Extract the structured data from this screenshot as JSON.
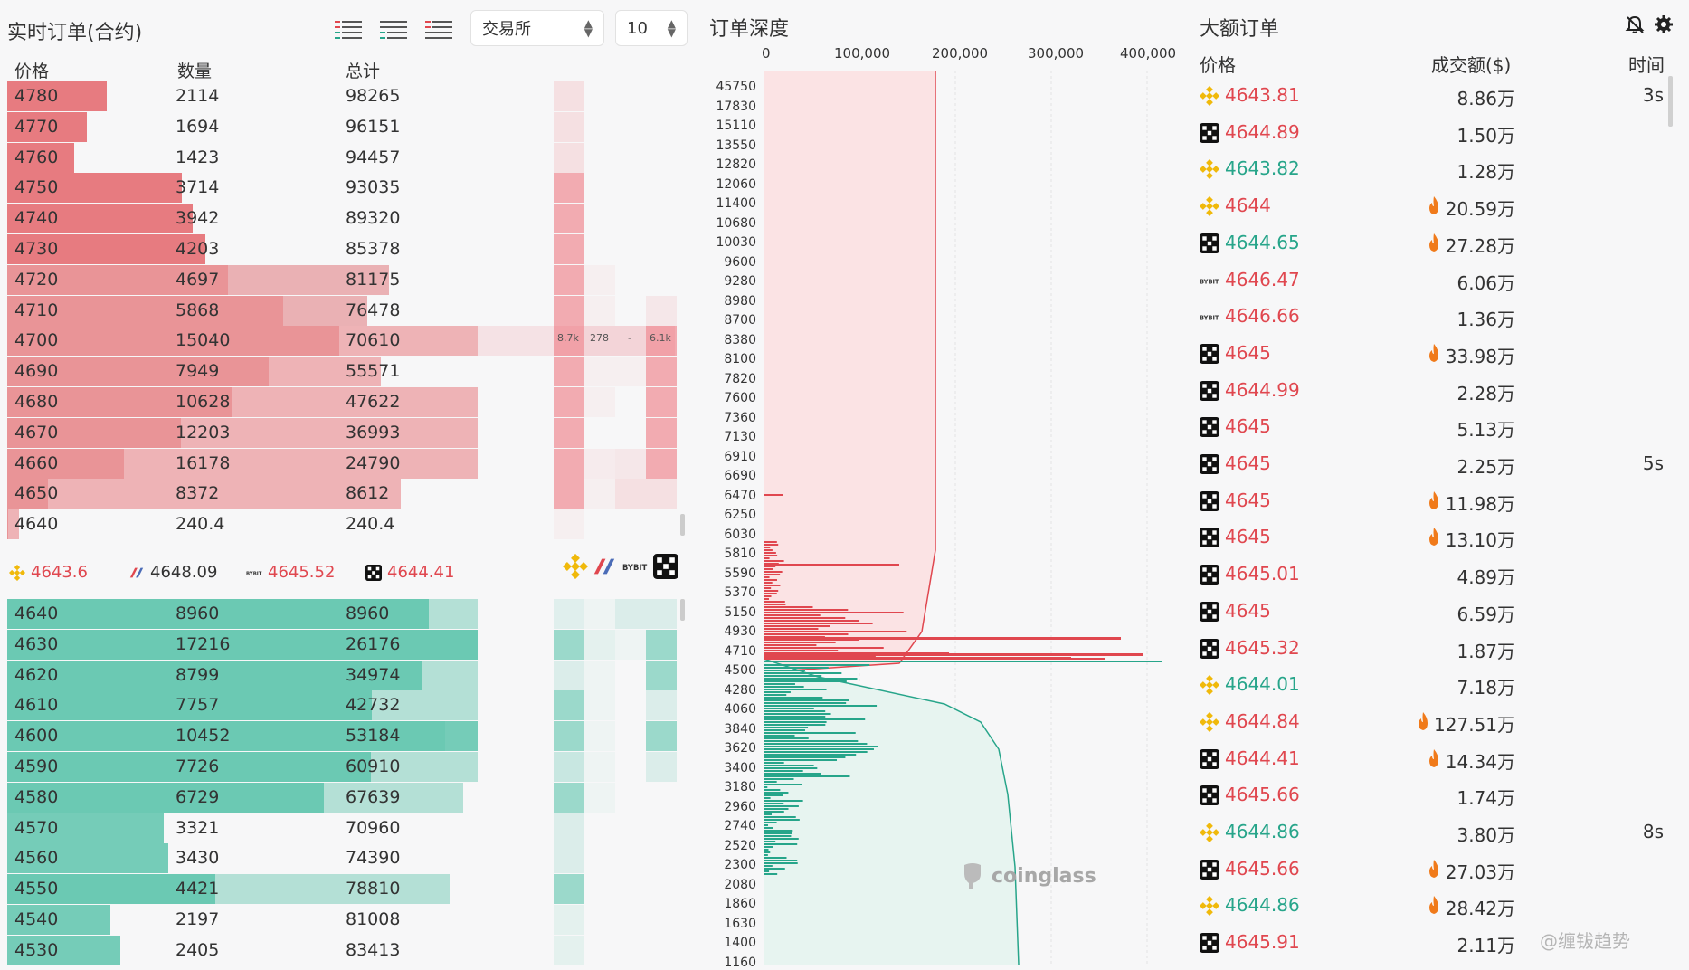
{
  "order_book": {
    "title": "实时订单(合约)",
    "exchange_select": "交易所",
    "depth_select": "10",
    "headers": {
      "price": "价格",
      "qty": "数量",
      "total": "总计"
    },
    "asks": [
      {
        "price": "4780",
        "qty": "2114",
        "total": "98265"
      },
      {
        "price": "4770",
        "qty": "1694",
        "total": "96151"
      },
      {
        "price": "4760",
        "qty": "1423",
        "total": "94457"
      },
      {
        "price": "4750",
        "qty": "3714",
        "total": "93035"
      },
      {
        "price": "4740",
        "qty": "3942",
        "total": "89320"
      },
      {
        "price": "4730",
        "qty": "4203",
        "total": "85378"
      },
      {
        "price": "4720",
        "qty": "4697",
        "total": "81175"
      },
      {
        "price": "4710",
        "qty": "5868",
        "total": "76478"
      },
      {
        "price": "4700",
        "qty": "15040",
        "total": "70610"
      },
      {
        "price": "4690",
        "qty": "7949",
        "total": "55571"
      },
      {
        "price": "4680",
        "qty": "10628",
        "total": "47622"
      },
      {
        "price": "4670",
        "qty": "12203",
        "total": "36993"
      },
      {
        "price": "4660",
        "qty": "16178",
        "total": "24790"
      },
      {
        "price": "4650",
        "qty": "8372",
        "total": "8612"
      },
      {
        "price": "4640",
        "qty": "240.4",
        "total": "240.4"
      }
    ],
    "bids": [
      {
        "price": "4640",
        "qty": "8960",
        "total": "8960"
      },
      {
        "price": "4630",
        "qty": "17216",
        "total": "26176"
      },
      {
        "price": "4620",
        "qty": "8799",
        "total": "34974"
      },
      {
        "price": "4610",
        "qty": "7757",
        "total": "42732"
      },
      {
        "price": "4600",
        "qty": "10452",
        "total": "53184"
      },
      {
        "price": "4590",
        "qty": "7726",
        "total": "60910"
      },
      {
        "price": "4580",
        "qty": "6729",
        "total": "67639"
      },
      {
        "price": "4570",
        "qty": "3321",
        "total": "70960"
      },
      {
        "price": "4560",
        "qty": "3430",
        "total": "74390"
      },
      {
        "price": "4550",
        "qty": "4421",
        "total": "78810"
      },
      {
        "price": "4540",
        "qty": "2197",
        "total": "81008"
      },
      {
        "price": "4530",
        "qty": "2405",
        "total": "83413"
      }
    ],
    "row_4700_tags": [
      "8.7k",
      "278",
      "-",
      "6.1k"
    ],
    "exchange_prices": [
      {
        "icon": "binance-icon",
        "price": "4643.6",
        "color": "#e0474f"
      },
      {
        "icon": "bitmex-icon",
        "price": "4648.09",
        "color": "#333333"
      },
      {
        "icon": "bybit-icon",
        "price": "4645.52",
        "color": "#e0474f"
      },
      {
        "icon": "okx-icon",
        "price": "4644.41",
        "color": "#e0474f"
      }
    ]
  },
  "depth": {
    "title": "订单深度",
    "x_ticks": [
      "0",
      "100,000",
      "200,000",
      "300,000",
      "400,000"
    ],
    "y_labels": [
      "45750",
      "17830",
      "15110",
      "13550",
      "12820",
      "12060",
      "11400",
      "10680",
      "10030",
      "9600",
      "9280",
      "8980",
      "8700",
      "8380",
      "8100",
      "7820",
      "7600",
      "7360",
      "7130",
      "6910",
      "6690",
      "6470",
      "6250",
      "6030",
      "5810",
      "5590",
      "5370",
      "5150",
      "4930",
      "4710",
      "4500",
      "4280",
      "4060",
      "3840",
      "3620",
      "3400",
      "3180",
      "2960",
      "2740",
      "2520",
      "2300",
      "2080",
      "1860",
      "1630",
      "1400",
      "1160"
    ],
    "watermark": "coinglass"
  },
  "big_orders": {
    "title": "大额订单",
    "headers": {
      "price": "价格",
      "amount": "成交额($)",
      "time": "时间"
    },
    "rows": [
      {
        "ex": "binance-icon",
        "price": "4643.81",
        "side": "up",
        "amount": "8.86万",
        "fire": false,
        "time": "3s"
      },
      {
        "ex": "okx-icon",
        "price": "4644.89",
        "side": "up",
        "amount": "1.50万",
        "fire": false,
        "time": ""
      },
      {
        "ex": "binance-icon",
        "price": "4643.82",
        "side": "dn",
        "amount": "1.28万",
        "fire": false,
        "time": ""
      },
      {
        "ex": "binance-icon",
        "price": "4644",
        "side": "up",
        "amount": "20.59万",
        "fire": true,
        "time": ""
      },
      {
        "ex": "okx-icon",
        "price": "4644.65",
        "side": "dn",
        "amount": "27.28万",
        "fire": true,
        "time": ""
      },
      {
        "ex": "bybit-icon",
        "price": "4646.47",
        "side": "up",
        "amount": "6.06万",
        "fire": false,
        "time": ""
      },
      {
        "ex": "bybit-icon",
        "price": "4646.66",
        "side": "up",
        "amount": "1.36万",
        "fire": false,
        "time": ""
      },
      {
        "ex": "okx-icon",
        "price": "4645",
        "side": "up",
        "amount": "33.98万",
        "fire": true,
        "time": ""
      },
      {
        "ex": "okx-icon",
        "price": "4644.99",
        "side": "up",
        "amount": "2.28万",
        "fire": false,
        "time": ""
      },
      {
        "ex": "okx-icon",
        "price": "4645",
        "side": "up",
        "amount": "5.13万",
        "fire": false,
        "time": ""
      },
      {
        "ex": "okx-icon",
        "price": "4645",
        "side": "up",
        "amount": "2.25万",
        "fire": false,
        "time": "5s"
      },
      {
        "ex": "okx-icon",
        "price": "4645",
        "side": "up",
        "amount": "11.98万",
        "fire": true,
        "time": ""
      },
      {
        "ex": "okx-icon",
        "price": "4645",
        "side": "up",
        "amount": "13.10万",
        "fire": true,
        "time": ""
      },
      {
        "ex": "okx-icon",
        "price": "4645.01",
        "side": "up",
        "amount": "4.89万",
        "fire": false,
        "time": ""
      },
      {
        "ex": "okx-icon",
        "price": "4645",
        "side": "up",
        "amount": "6.59万",
        "fire": false,
        "time": ""
      },
      {
        "ex": "okx-icon",
        "price": "4645.32",
        "side": "up",
        "amount": "1.87万",
        "fire": false,
        "time": ""
      },
      {
        "ex": "binance-icon",
        "price": "4644.01",
        "side": "dn",
        "amount": "7.18万",
        "fire": false,
        "time": ""
      },
      {
        "ex": "binance-icon",
        "price": "4644.84",
        "side": "up",
        "amount": "127.51万",
        "fire": true,
        "time": ""
      },
      {
        "ex": "okx-icon",
        "price": "4644.41",
        "side": "up",
        "amount": "14.34万",
        "fire": true,
        "time": ""
      },
      {
        "ex": "okx-icon",
        "price": "4645.66",
        "side": "up",
        "amount": "1.74万",
        "fire": false,
        "time": ""
      },
      {
        "ex": "binance-icon",
        "price": "4644.86",
        "side": "dn",
        "amount": "3.80万",
        "fire": false,
        "time": "8s"
      },
      {
        "ex": "okx-icon",
        "price": "4645.66",
        "side": "up",
        "amount": "27.03万",
        "fire": true,
        "time": ""
      },
      {
        "ex": "binance-icon",
        "price": "4644.86",
        "side": "dn",
        "amount": "28.42万",
        "fire": true,
        "time": ""
      },
      {
        "ex": "okx-icon",
        "price": "4645.91",
        "side": "up",
        "amount": "2.11万",
        "fire": false,
        "time": ""
      }
    ],
    "watermark_text": "@缠钹趋势"
  },
  "colors": {
    "ask": "#e0474f",
    "bid": "#27a58a"
  }
}
